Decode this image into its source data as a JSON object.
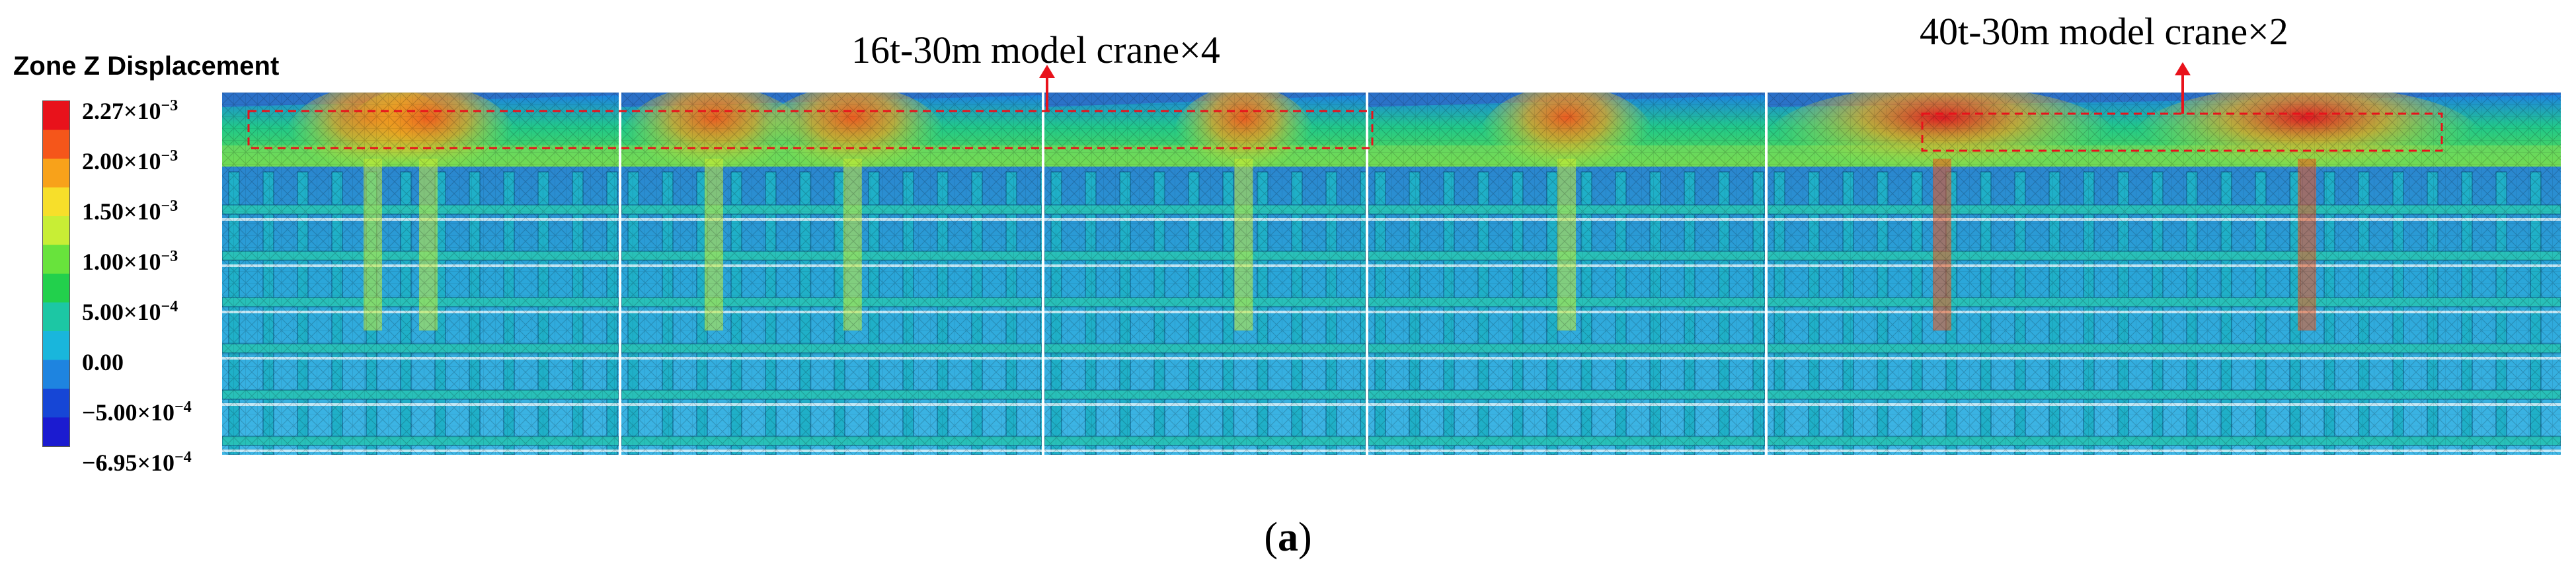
{
  "legend": {
    "title": "Zone Z Displacement",
    "colors": [
      "#e8121b",
      "#f5561a",
      "#f8a21a",
      "#f7df2a",
      "#c8ee35",
      "#68e33c",
      "#22d04c",
      "#1cc7a4",
      "#19b6dc",
      "#1e84e0",
      "#1646d6",
      "#1b1bd0"
    ],
    "ticks": [
      {
        "mantissa": "2.27×10",
        "exponent": "−3"
      },
      {
        "mantissa": "2.00×10",
        "exponent": "−3"
      },
      {
        "mantissa": "1.50×10",
        "exponent": "−3"
      },
      {
        "mantissa": "1.00×10",
        "exponent": "−3"
      },
      {
        "mantissa": "5.00×10",
        "exponent": "−4"
      },
      {
        "mantissa": "0.00",
        "exponent": ""
      },
      {
        "mantissa": "−5.00×10",
        "exponent": "−4"
      },
      {
        "mantissa": "−6.95×10",
        "exponent": "−4"
      }
    ]
  },
  "annotations": {
    "left_callout": "16t-30m model crane×4",
    "right_callout": "40t-30m model crane×2",
    "arrow_color": "#e8121b"
  },
  "caption": {
    "open": "(",
    "letter": "a",
    "close": ")"
  }
}
